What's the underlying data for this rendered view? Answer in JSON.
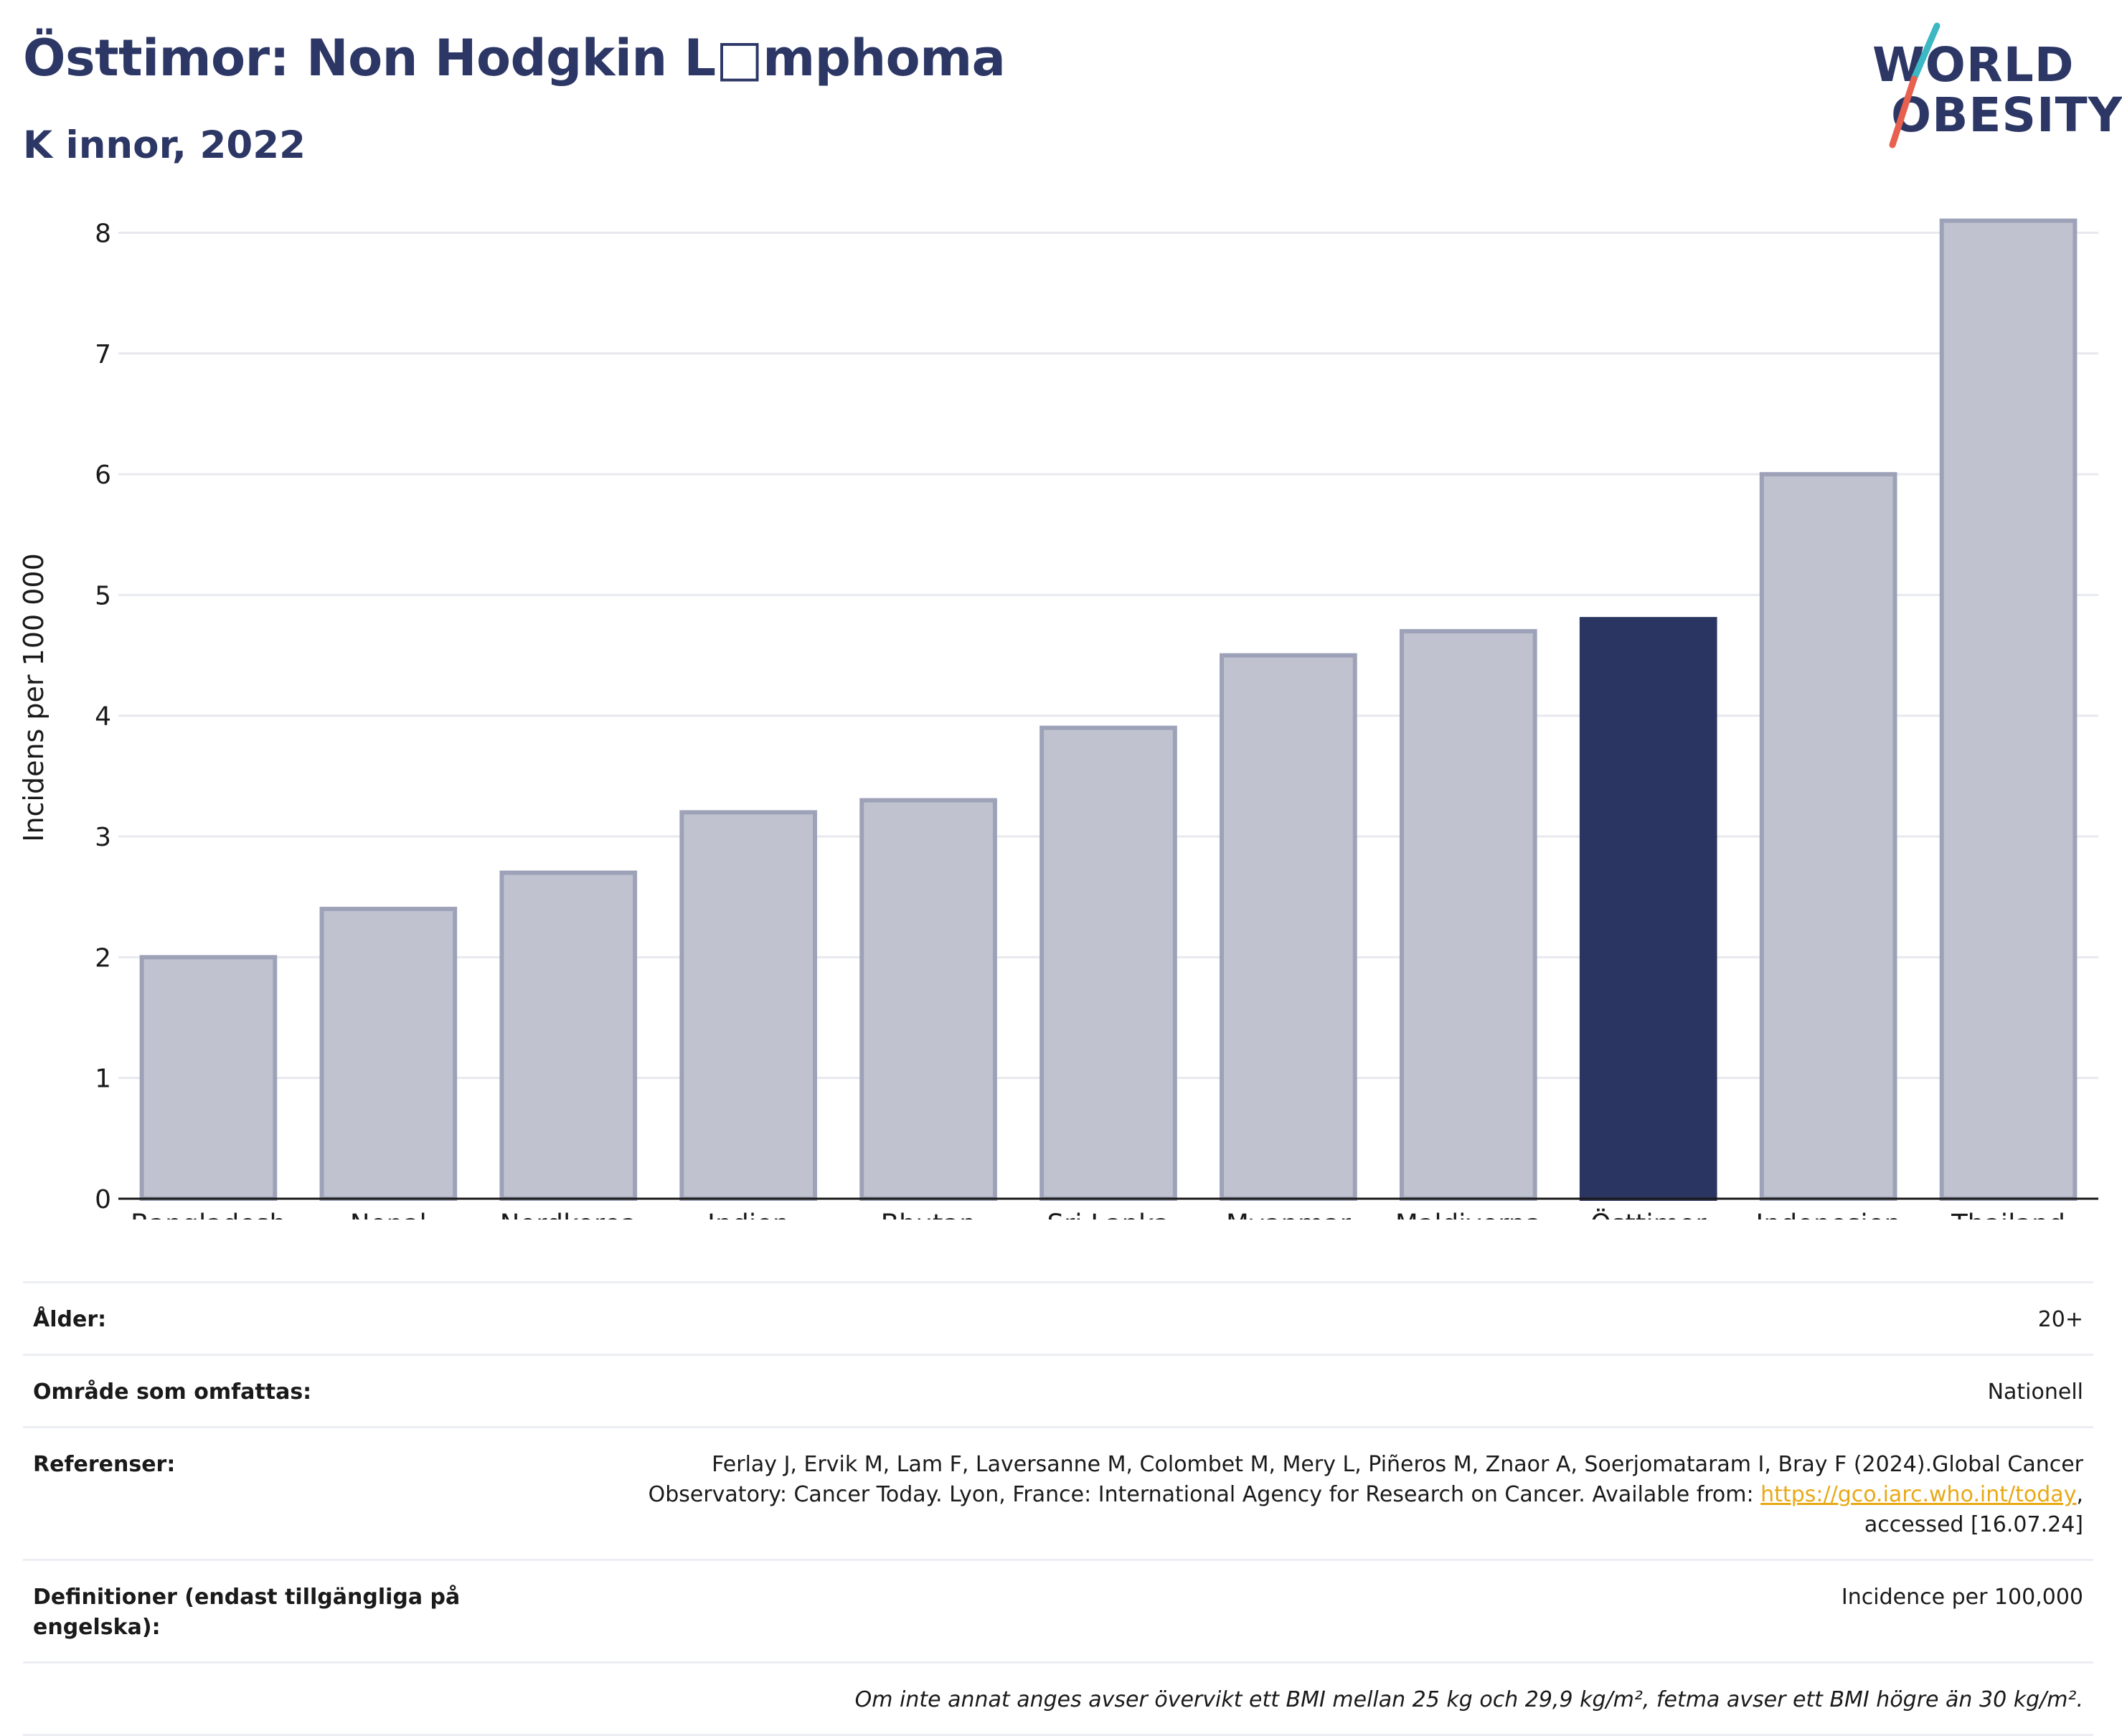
{
  "header": {
    "title": "Östtimor: Non Hodgkin L□mphoma",
    "subtitle": "K  innor, 2022"
  },
  "logo": {
    "line1": "WORLD",
    "line2": "OBESITY",
    "accent_colors": [
      "#3bb8c3",
      "#e8604f"
    ]
  },
  "chart_data": {
    "type": "bar",
    "categories": [
      "Bangladesh",
      "Nepal",
      "Nordkorea",
      "Indien",
      "Bhutan",
      "Sri Lanka",
      "Myanmar",
      "Maldiverna",
      "Östtimor",
      "Indonesien",
      "Thailand"
    ],
    "values": [
      2.0,
      2.4,
      2.7,
      3.2,
      3.3,
      3.9,
      4.5,
      4.7,
      4.8,
      6.0,
      8.1
    ],
    "highlight": "Östtimor",
    "ylabel": "Incidens per 100 000",
    "ylim": [
      0,
      8.3
    ],
    "yticks": [
      0,
      1,
      2,
      3,
      4,
      5,
      6,
      7,
      8
    ],
    "grid": true,
    "colors": {
      "bar": "#c0c3cf",
      "bar_edge": "#9da2b8",
      "highlight": "#2b3562",
      "grid": "#e8e9ef"
    }
  },
  "info": {
    "rows": [
      {
        "label": "Ålder:",
        "value": "20+"
      },
      {
        "label": "Område som omfattas:",
        "value": "Nationell"
      },
      {
        "label": "Referenser:",
        "value_lines": [
          "Ferlay J, Ervik M, Lam F, Laversanne M, Colombet M, Mery L, Piñeros M, Znaor A, Soerjomataram I, Bray F (2024).Global Cancer",
          "Observatory: Cancer Today. Lyon, France: International Agency for Research on Cancer. Available from: ",
          "https://gco.iarc.who.int/today",
          ",",
          "accessed [16.07.24]"
        ]
      },
      {
        "label": "Definitioner (endast tillgängliga på engelska):",
        "value": "Incidence per 100,000"
      }
    ],
    "note": "Om inte annat anges avser övervikt ett BMI mellan 25 kg och 29,9 kg/m², fetma avser ett BMI högre än 30 kg/m²."
  }
}
